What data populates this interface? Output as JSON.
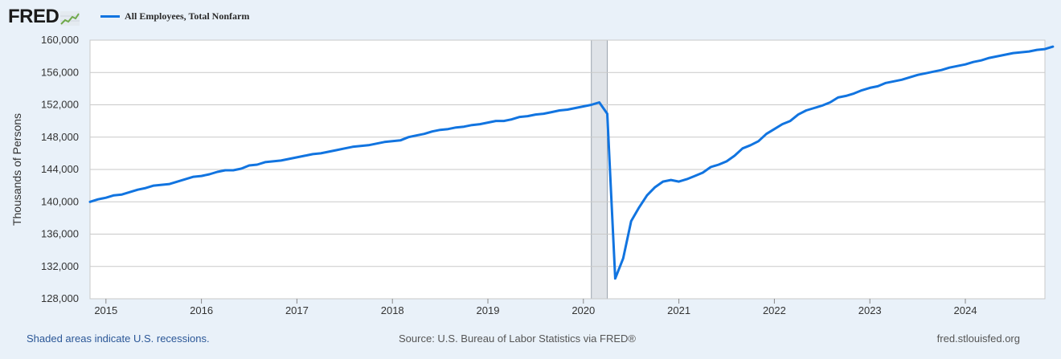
{
  "header": {
    "logo_text": "FRED",
    "legend_label": "All Employees, Total Nonfarm"
  },
  "colors": {
    "series": "#1174e0",
    "background": "#e9f1f9",
    "plot_bg": "#ffffff",
    "grid": "#c9c9c9",
    "recession": "#dfe3e8",
    "logo_graph": "#6fa94b"
  },
  "icons": {
    "logo_graph": "trend-line-icon"
  },
  "footer": {
    "left": "Shaded areas indicate U.S. recessions.",
    "center": "Source: U.S. Bureau of Labor Statistics via FRED®",
    "right": "fred.stlouisfed.org"
  },
  "chart_data": {
    "type": "line",
    "title": "",
    "xlabel": "",
    "ylabel": "Thousands of Persons",
    "grid": true,
    "xlim": [
      "2014-11",
      "2024-11"
    ],
    "ylim": [
      128000,
      160000
    ],
    "yticks": [
      128000,
      132000,
      136000,
      140000,
      144000,
      148000,
      152000,
      156000,
      160000
    ],
    "ytick_labels": [
      "128,000",
      "132,000",
      "136,000",
      "140,000",
      "144,000",
      "148,000",
      "152,000",
      "156,000",
      "160,000"
    ],
    "xtick_labels": [
      "2015",
      "2016",
      "2017",
      "2018",
      "2019",
      "2020",
      "2021",
      "2022",
      "2023",
      "2024"
    ],
    "recessions": [
      {
        "start": "2020-02",
        "end": "2020-04"
      }
    ],
    "series": [
      {
        "name": "All Employees, Total Nonfarm",
        "start": "2014-11",
        "frequency": "monthly",
        "values": [
          140000,
          140300,
          140500,
          140800,
          140900,
          141200,
          141500,
          141700,
          142000,
          142100,
          142200,
          142500,
          142800,
          143100,
          143200,
          143400,
          143700,
          143900,
          143900,
          144100,
          144500,
          144600,
          144900,
          145000,
          145100,
          145300,
          145500,
          145700,
          145900,
          146000,
          146200,
          146400,
          146600,
          146800,
          146900,
          147000,
          147200,
          147400,
          147500,
          147600,
          148000,
          148200,
          148400,
          148700,
          148900,
          149000,
          149200,
          149300,
          149500,
          149600,
          149800,
          150000,
          150000,
          150200,
          150500,
          150600,
          150800,
          150900,
          151100,
          151300,
          151400,
          151600,
          151800,
          152000,
          152300,
          150900,
          130500,
          133000,
          137600,
          139300,
          140800,
          141800,
          142500,
          142700,
          142500,
          142800,
          143200,
          143600,
          144300,
          144600,
          145000,
          145700,
          146600,
          147000,
          147500,
          148400,
          149000,
          149600,
          150000,
          150800,
          151300,
          151600,
          151900,
          152300,
          152900,
          153100,
          153400,
          153800,
          154100,
          154300,
          154700,
          154900,
          155100,
          155400,
          155700,
          155900,
          156100,
          156300,
          156600,
          156800,
          157000,
          157300,
          157500,
          157800,
          158000,
          158200,
          158400,
          158500,
          158600,
          158800,
          158900,
          159200
        ]
      }
    ]
  }
}
